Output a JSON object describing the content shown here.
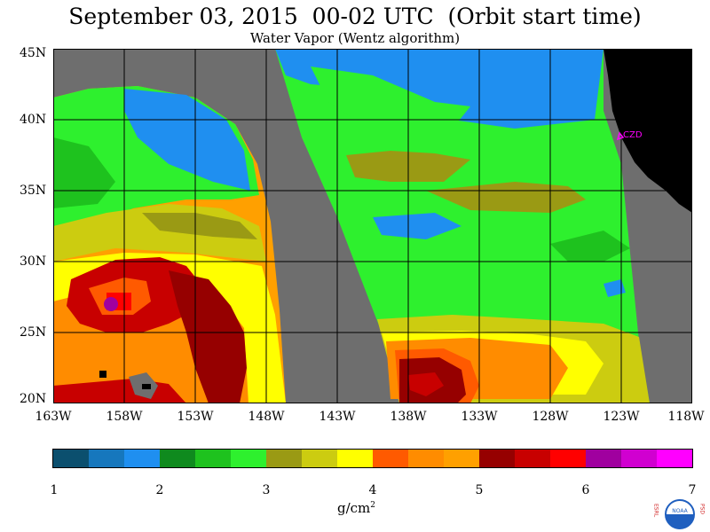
{
  "header": {
    "title": "September 03, 2015  00-02 UTC  (Orbit start time)",
    "subtitle": "Water Vapor (Wentz algorithm)"
  },
  "map": {
    "lat_labels": [
      "45N",
      "40N",
      "35N",
      "30N",
      "25N",
      "20N"
    ],
    "lon_labels": [
      "163W",
      "158W",
      "153W",
      "148W",
      "143W",
      "138W",
      "133W",
      "128W",
      "123W",
      "118W"
    ],
    "place_label": "CZD",
    "colors": {
      "no_data": "#6e6e6e",
      "land": "#000000",
      "grid": "#000000",
      "station": "#ff00ff"
    }
  },
  "colorbar": {
    "colors": [
      "#0b4f6e",
      "#1677bd",
      "#1f8ff0",
      "#0f8a1e",
      "#1ec21e",
      "#2ef02e",
      "#9a9a14",
      "#cccc10",
      "#ffff00",
      "#ff5a00",
      "#ff8c00",
      "#ffa000",
      "#960000",
      "#c80000",
      "#ff0000",
      "#a0009f",
      "#d000d0",
      "#ff00ff"
    ],
    "ticks": [
      "1",
      "2",
      "3",
      "4",
      "5",
      "6",
      "7"
    ],
    "units_base": "g/cm",
    "units_sup": "2"
  },
  "logo": {
    "left_text": "ESRL",
    "right_text": "PSD",
    "center_text": "NOAA"
  }
}
